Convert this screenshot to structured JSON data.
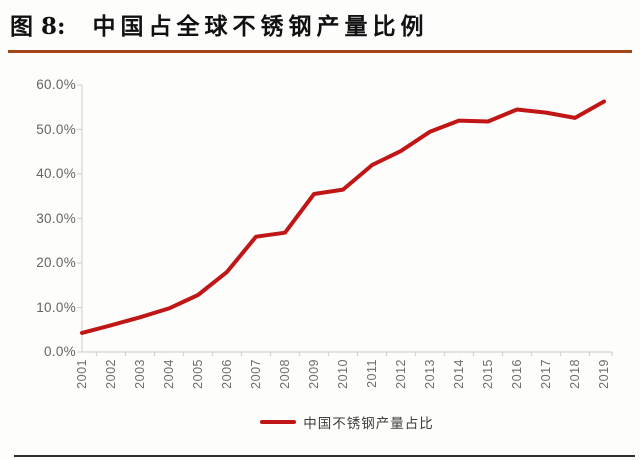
{
  "figure": {
    "title_prefix": "图 8:",
    "title_text": "中国占全球不锈钢产量比例"
  },
  "colors": {
    "line": "#c01616",
    "title_rule": "#a5431c",
    "axis": "#d6d3d2",
    "tick_text": "#6f6d6c",
    "bottom_rule": "#2e2d2d"
  },
  "chart_data": {
    "type": "line",
    "title": "中国占全球不锈钢产量比例",
    "x": [
      "2001",
      "2002",
      "2003",
      "2004",
      "2005",
      "2006",
      "2007",
      "2008",
      "2009",
      "2010",
      "2011",
      "2012",
      "2013",
      "2014",
      "2015",
      "2016",
      "2017",
      "2018",
      "2019"
    ],
    "series": [
      {
        "name": "中国不锈钢产量占比",
        "color": "#c01616",
        "unit": "%",
        "values": [
          4.3,
          6.0,
          7.8,
          9.8,
          12.8,
          18.0,
          25.9,
          26.8,
          35.5,
          36.5,
          42.0,
          45.2,
          49.5,
          52.0,
          51.8,
          54.5,
          53.8,
          52.6,
          56.3
        ]
      }
    ],
    "y_tick_labels": [
      "0.0%",
      "10.0%",
      "20.0%",
      "30.0%",
      "40.0%",
      "50.0%",
      "60.0%"
    ],
    "ylim": [
      0,
      60
    ],
    "xlabel": "",
    "ylabel": "",
    "grid": false,
    "legend_position": "bottom"
  }
}
